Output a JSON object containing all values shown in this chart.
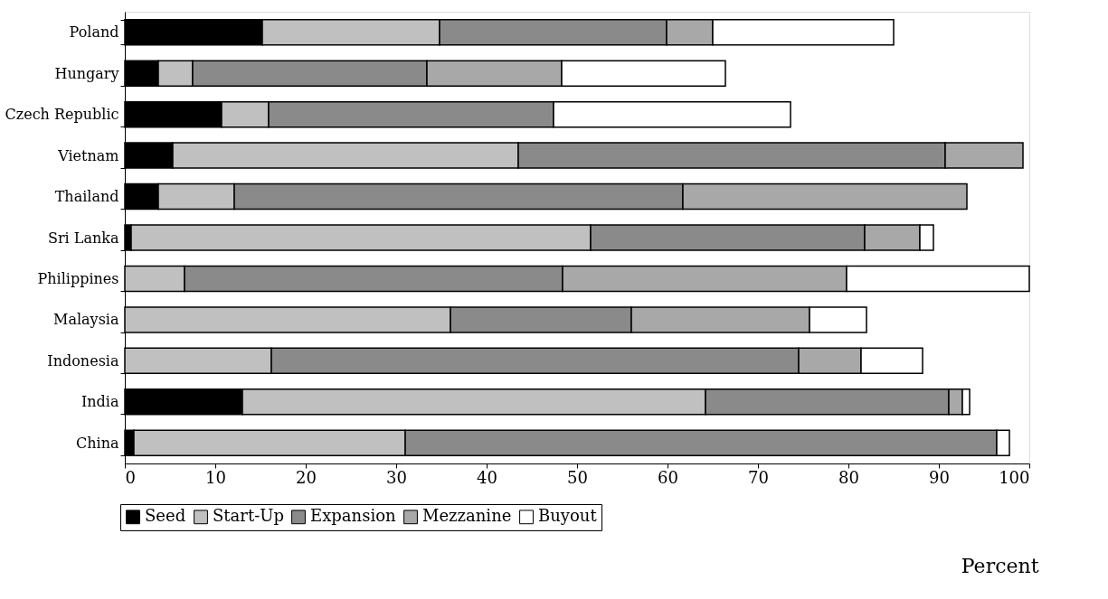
{
  "chart_data": {
    "type": "bar",
    "orientation": "horizontal",
    "stacked": true,
    "xlabel": "Percent",
    "categories": [
      "Poland",
      "Hungary",
      "Czech Republic",
      "Vietnam",
      "Thailand",
      "Sri Lanka",
      "Philippines",
      "Malaysia",
      "Indonesia",
      "India",
      "China"
    ],
    "series": [
      {
        "name": "Seed",
        "color": "#000000",
        "values": [
          15.2,
          3.7,
          10.7,
          5.3,
          3.7,
          0.7,
          0,
          0,
          0,
          13.0,
          1.0
        ]
      },
      {
        "name": "Start-Up",
        "color": "#c0c0c0",
        "values": [
          19.6,
          3.8,
          5.2,
          38.2,
          8.4,
          50.8,
          6.6,
          36.0,
          16.2,
          51.2,
          30.0
        ]
      },
      {
        "name": "Expansion",
        "color": "#8a8a8a",
        "values": [
          25.1,
          25.9,
          31.5,
          47.2,
          49.6,
          30.3,
          41.8,
          20.0,
          58.3,
          26.9,
          65.4
        ]
      },
      {
        "name": "Mezzanine",
        "color": "#a8a8a8",
        "values": [
          5.1,
          14.9,
          0,
          8.6,
          31.4,
          6.1,
          31.4,
          19.7,
          6.9,
          1.5,
          0
        ]
      },
      {
        "name": "Buyout",
        "color": "#ffffff",
        "values": [
          20.0,
          18.1,
          26.2,
          0,
          0,
          1.5,
          20.2,
          6.3,
          6.8,
          0.8,
          1.4
        ]
      }
    ],
    "xlim": [
      0,
      100
    ],
    "xticks": [
      0,
      10,
      20,
      30,
      40,
      50,
      60,
      70,
      80,
      90,
      100
    ],
    "grid": false,
    "legend": "bottom left"
  }
}
